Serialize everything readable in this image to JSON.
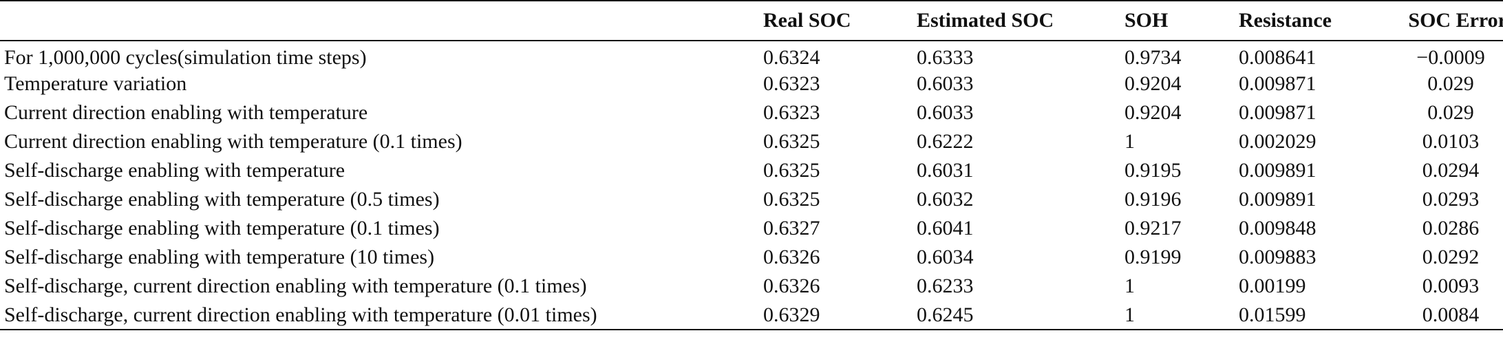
{
  "table": {
    "headers": [
      "",
      "Real SOC",
      "Estimated SOC",
      "SOH",
      "Resistance",
      "SOC Error"
    ],
    "rows": [
      [
        "For 1,000,000 cycles(simulation time steps)",
        "0.6324",
        "0.6333",
        "0.9734",
        "0.008641",
        "−0.0009"
      ],
      [
        "Temperature variation",
        "0.6323",
        "0.6033",
        "0.9204",
        "0.009871",
        "0.029"
      ],
      [
        "Current direction enabling with temperature",
        "0.6323",
        "0.6033",
        "0.9204",
        "0.009871",
        "0.029"
      ],
      [
        "Current direction enabling with temperature (0.1 times)",
        "0.6325",
        "0.6222",
        "1",
        "0.002029",
        "0.0103"
      ],
      [
        "Self-discharge enabling with temperature",
        "0.6325",
        "0.6031",
        "0.9195",
        "0.009891",
        "0.0294"
      ],
      [
        "Self-discharge enabling with temperature (0.5 times)",
        "0.6325",
        "0.6032",
        "0.9196",
        "0.009891",
        "0.0293"
      ],
      [
        "Self-discharge enabling with temperature (0.1 times)",
        "0.6327",
        "0.6041",
        "0.9217",
        "0.009848",
        "0.0286"
      ],
      [
        "Self-discharge enabling with temperature (10 times)",
        "0.6326",
        "0.6034",
        "0.9199",
        "0.009883",
        "0.0292"
      ],
      [
        "Self-discharge, current direction enabling with temperature (0.1 times)",
        "0.6326",
        "0.6233",
        "1",
        "0.00199",
        "0.0093"
      ],
      [
        "Self-discharge, current direction enabling with temperature (0.01 times)",
        "0.6329",
        "0.6245",
        "1",
        "0.01599",
        "0.0084"
      ]
    ]
  }
}
